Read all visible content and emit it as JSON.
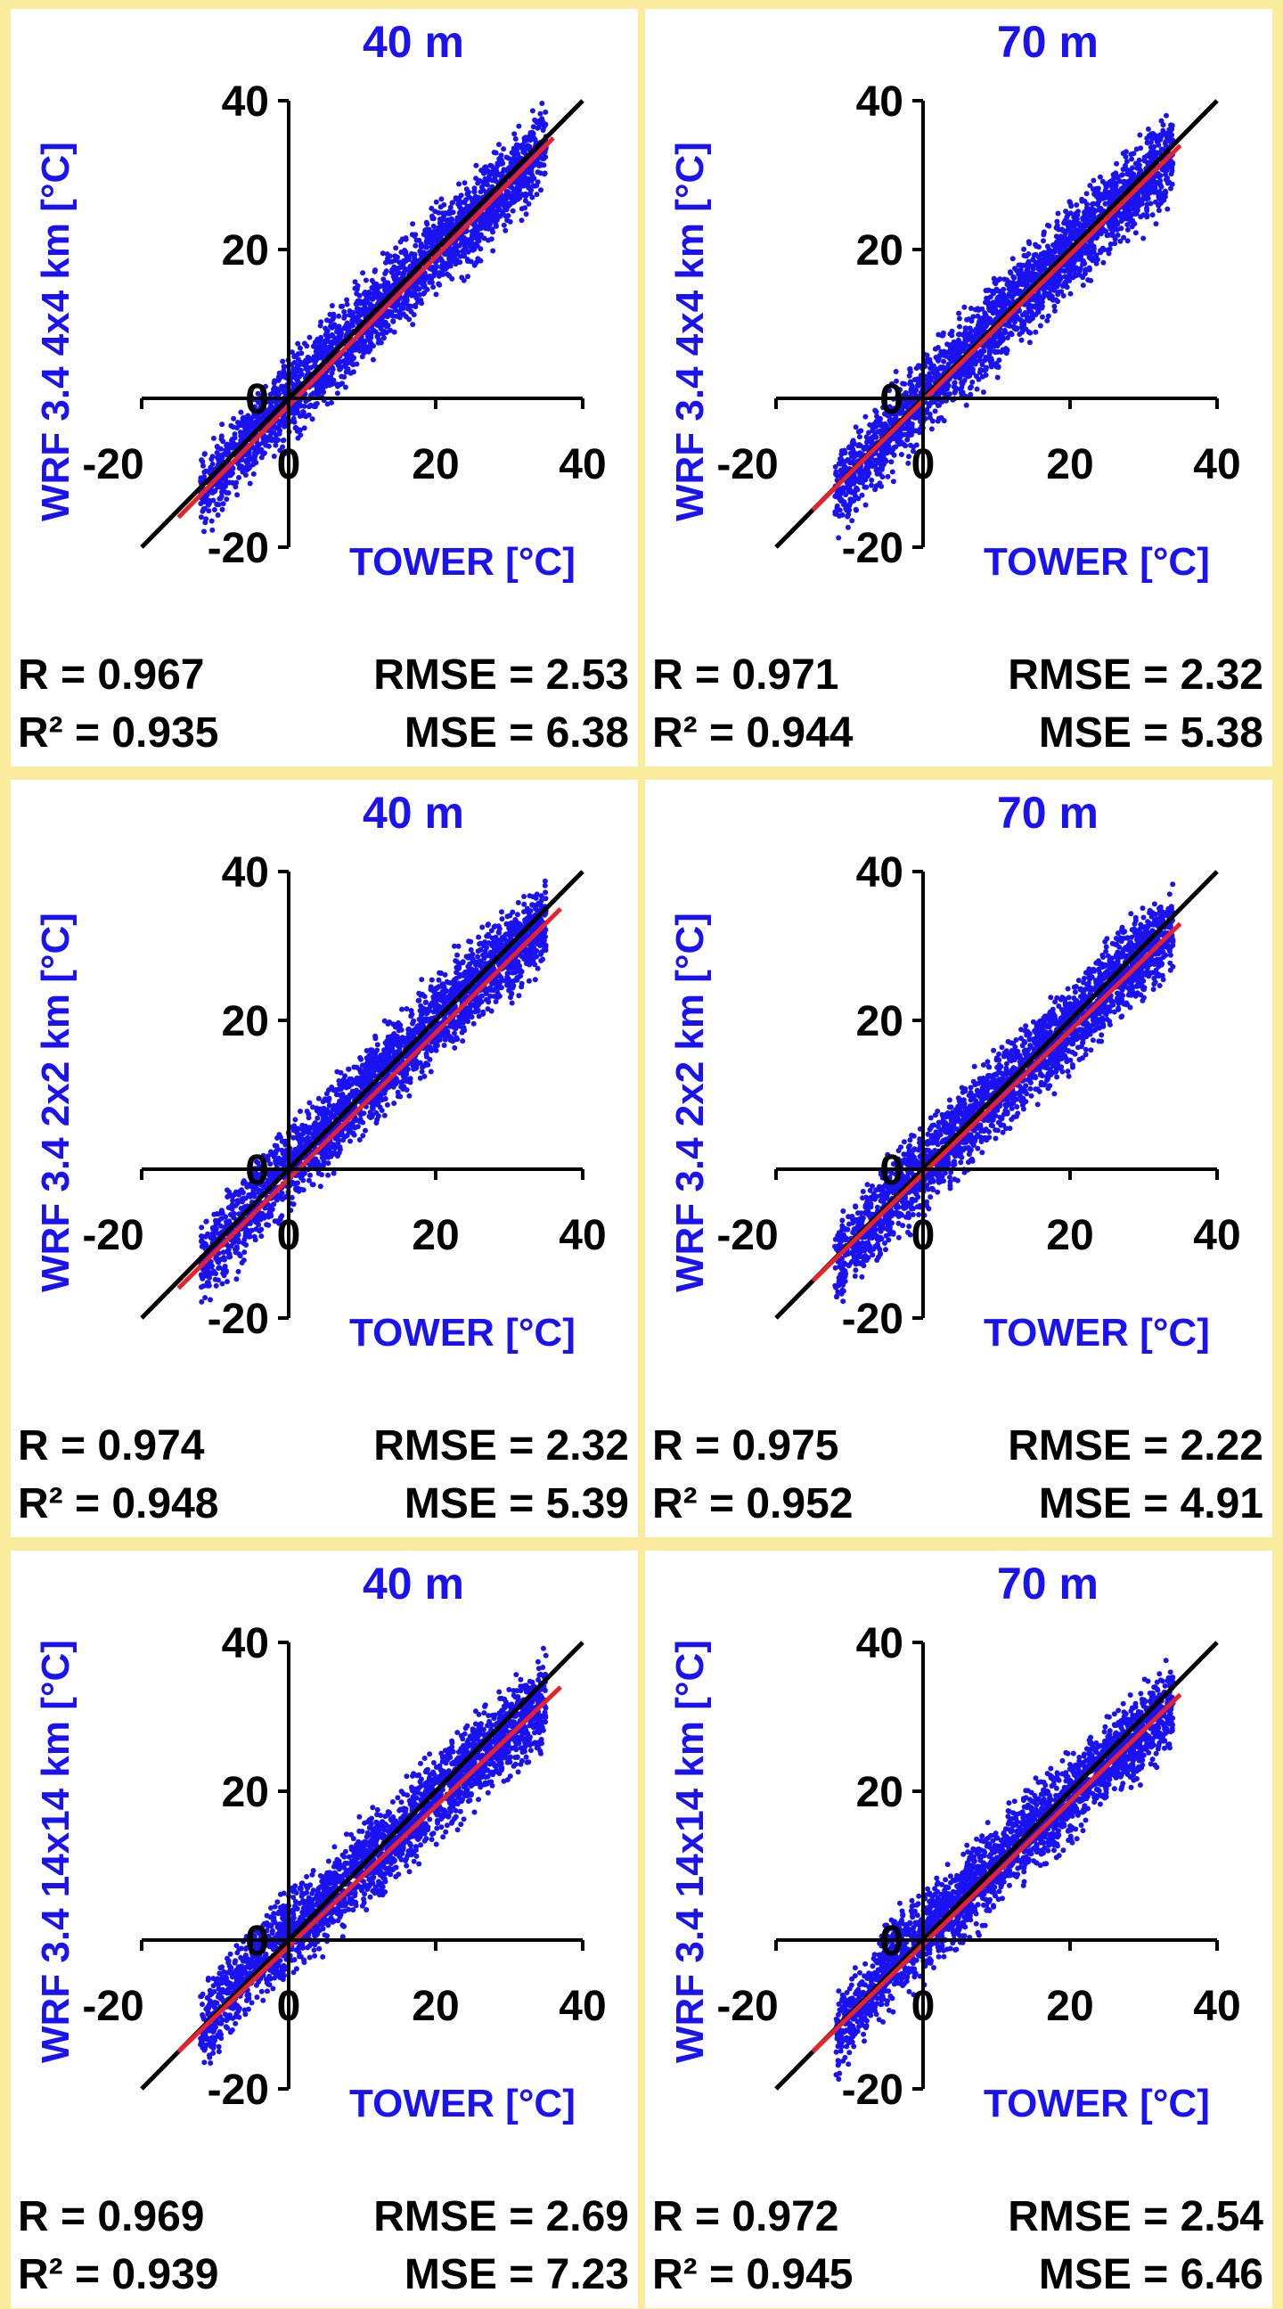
{
  "chart_data": [
    {
      "type": "scatter",
      "title": "40 m",
      "ylabel": "WRF 3.4  4x4 km [°C]",
      "xlabel": "TOWER [°C]",
      "xticks": [
        "-20",
        "0",
        "20",
        "40"
      ],
      "yticks": [
        "-20",
        "0",
        "20",
        "40"
      ],
      "xlim": [
        -20,
        40
      ],
      "ylim": [
        -20,
        40
      ],
      "stats": {
        "r": "R = 0.967",
        "rmse": "RMSE = 2.53",
        "r2": "R² = 0.935",
        "mse": "MSE = 6.38"
      },
      "fit": {
        "x": [
          -15,
          36
        ],
        "y": [
          -16,
          35
        ]
      },
      "identity": {
        "x": [
          -20,
          40
        ],
        "y": [
          -20,
          40
        ]
      },
      "series": [
        {
          "x": [
            -12,
            -5,
            0,
            5,
            10,
            15,
            20,
            25,
            30,
            35
          ],
          "y": [
            -13,
            -5,
            0,
            5,
            10,
            15,
            20,
            24,
            29,
            34
          ]
        }
      ],
      "colors": {
        "points": "#1a12f0",
        "fit": "#e8222a",
        "identity": "#000000"
      }
    },
    {
      "type": "scatter",
      "title": "70 m",
      "ylabel": "WRF 3.4  4x4 km [°C]",
      "xlabel": "TOWER [°C]",
      "xticks": [
        "-20",
        "0",
        "20",
        "40"
      ],
      "yticks": [
        "-20",
        "0",
        "20",
        "40"
      ],
      "xlim": [
        -20,
        40
      ],
      "ylim": [
        -20,
        40
      ],
      "stats": {
        "r": "R = 0.971",
        "rmse": "RMSE = 2.32",
        "r2": "R² = 0.944",
        "mse": "MSE = 5.38"
      },
      "fit": {
        "x": [
          -15,
          35
        ],
        "y": [
          -15,
          34
        ]
      },
      "identity": {
        "x": [
          -20,
          40
        ],
        "y": [
          -20,
          40
        ]
      },
      "series": [
        {
          "x": [
            -12,
            -5,
            0,
            5,
            10,
            15,
            20,
            25,
            30,
            34
          ],
          "y": [
            -13,
            -5,
            0,
            5,
            10,
            15,
            20,
            25,
            29,
            33
          ]
        }
      ],
      "colors": {
        "points": "#1a12f0",
        "fit": "#e8222a",
        "identity": "#000000"
      }
    },
    {
      "type": "scatter",
      "title": "40 m",
      "ylabel": "WRF 3.4  2x2 km [°C]",
      "xlabel": "TOWER [°C]",
      "xticks": [
        "-20",
        "0",
        "20",
        "40"
      ],
      "yticks": [
        "-20",
        "0",
        "20",
        "40"
      ],
      "xlim": [
        -20,
        40
      ],
      "ylim": [
        -20,
        40
      ],
      "stats": {
        "r": "R = 0.974",
        "rmse": "RMSE = 2.32",
        "r2": "R² = 0.948",
        "mse": "MSE = 5.39"
      },
      "fit": {
        "x": [
          -15,
          37
        ],
        "y": [
          -16,
          35
        ]
      },
      "identity": {
        "x": [
          -20,
          40
        ],
        "y": [
          -20,
          40
        ]
      },
      "series": [
        {
          "x": [
            -12,
            -5,
            0,
            5,
            10,
            15,
            20,
            25,
            30,
            35
          ],
          "y": [
            -13,
            -5,
            0,
            5,
            10,
            15,
            20,
            25,
            29,
            33
          ]
        }
      ],
      "colors": {
        "points": "#1a12f0",
        "fit": "#e8222a",
        "identity": "#000000"
      }
    },
    {
      "type": "scatter",
      "title": "70 m",
      "ylabel": "WRF 3.4  2x2 km [°C]",
      "xlabel": "TOWER [°C]",
      "xticks": [
        "-20",
        "0",
        "20",
        "40"
      ],
      "yticks": [
        "-20",
        "0",
        "20",
        "40"
      ],
      "xlim": [
        -20,
        40
      ],
      "ylim": [
        -20,
        40
      ],
      "stats": {
        "r": "R = 0.975",
        "rmse": "RMSE = 2.22",
        "r2": "R² = 0.952",
        "mse": "MSE = 4.91"
      },
      "fit": {
        "x": [
          -15,
          35
        ],
        "y": [
          -15,
          33
        ]
      },
      "identity": {
        "x": [
          -20,
          40
        ],
        "y": [
          -20,
          40
        ]
      },
      "series": [
        {
          "x": [
            -12,
            -5,
            0,
            5,
            10,
            15,
            20,
            25,
            30,
            34
          ],
          "y": [
            -13,
            -5,
            0,
            5,
            10,
            15,
            19,
            24,
            29,
            32
          ]
        }
      ],
      "colors": {
        "points": "#1a12f0",
        "fit": "#e8222a",
        "identity": "#000000"
      }
    },
    {
      "type": "scatter",
      "title": "40 m",
      "ylabel": "WRF 3.4  14x14 km [°C]",
      "xlabel": "TOWER [°C]",
      "xticks": [
        "-20",
        "0",
        "20",
        "40"
      ],
      "yticks": [
        "-20",
        "0",
        "20",
        "40"
      ],
      "xlim": [
        -20,
        40
      ],
      "ylim": [
        -20,
        40
      ],
      "stats": {
        "r": "R = 0.969",
        "rmse": "RMSE = 2.69",
        "r2": "R² = 0.939",
        "mse": "MSE = 7.23"
      },
      "fit": {
        "x": [
          -15,
          37
        ],
        "y": [
          -15,
          34
        ]
      },
      "identity": {
        "x": [
          -20,
          40
        ],
        "y": [
          -20,
          40
        ]
      },
      "series": [
        {
          "x": [
            -12,
            -5,
            0,
            5,
            10,
            15,
            20,
            25,
            30,
            35
          ],
          "y": [
            -12,
            -4,
            1,
            5,
            10,
            14,
            19,
            24,
            28,
            32
          ]
        }
      ],
      "colors": {
        "points": "#1a12f0",
        "fit": "#e8222a",
        "identity": "#000000"
      }
    },
    {
      "type": "scatter",
      "title": "70 m",
      "ylabel": "WRF 3.4  14x14 km [°C]",
      "xlabel": "TOWER [°C]",
      "xticks": [
        "-20",
        "0",
        "20",
        "40"
      ],
      "yticks": [
        "-20",
        "0",
        "20",
        "40"
      ],
      "xlim": [
        -20,
        40
      ],
      "ylim": [
        -20,
        40
      ],
      "stats": {
        "r": "R = 0.972",
        "rmse": "RMSE = 2.54",
        "r2": "R² = 0.945",
        "mse": "MSE = 6.46"
      },
      "fit": {
        "x": [
          -15,
          35
        ],
        "y": [
          -15,
          33
        ]
      },
      "identity": {
        "x": [
          -20,
          40
        ],
        "y": [
          -20,
          40
        ]
      },
      "series": [
        {
          "x": [
            -12,
            -5,
            0,
            5,
            10,
            15,
            20,
            25,
            30,
            34
          ],
          "y": [
            -13,
            -4,
            1,
            5,
            10,
            15,
            19,
            24,
            28,
            32
          ]
        }
      ],
      "colors": {
        "points": "#1a12f0",
        "fit": "#e8222a",
        "identity": "#000000"
      }
    }
  ]
}
